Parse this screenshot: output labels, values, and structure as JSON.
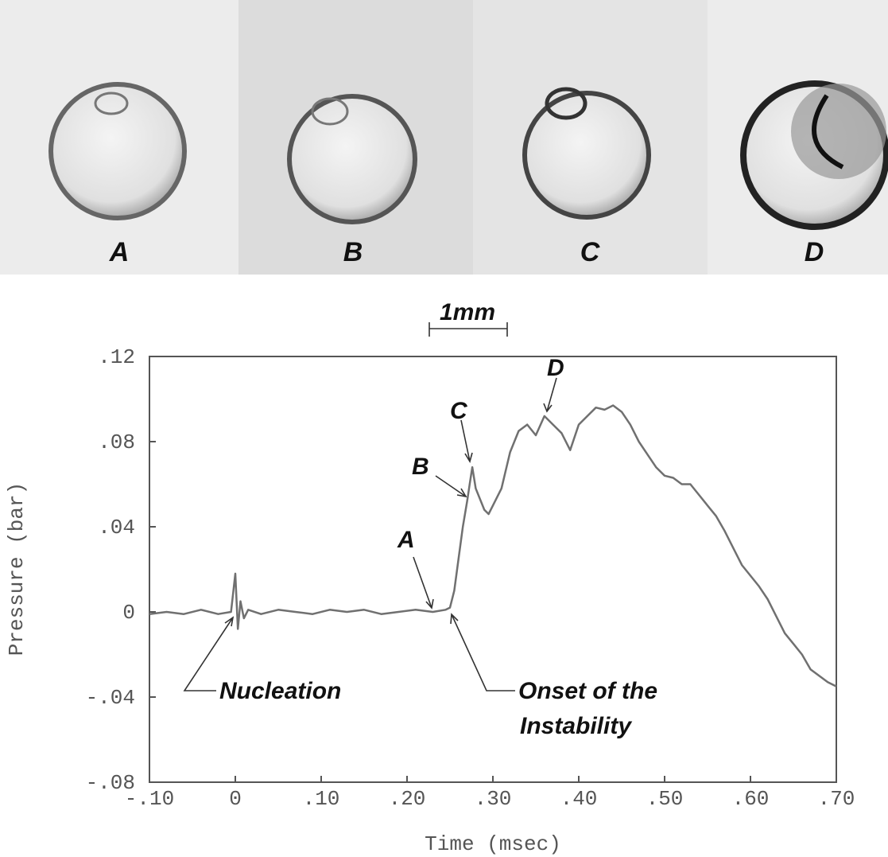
{
  "chart_data": {
    "type": "line",
    "photo_labels": [
      "A",
      "B",
      "C",
      "D"
    ],
    "scale_bar_label": "1mm",
    "xlabel": "Time (msec)",
    "ylabel": "Pressure (bar)",
    "annotations": [
      "A",
      "B",
      "C",
      "D",
      "Nucleation",
      "Onset of the",
      "Instability"
    ],
    "xlim": [
      -0.1,
      0.7
    ],
    "ylim": [
      -0.08,
      0.12
    ],
    "xticks": [
      {
        "value": -0.1,
        "label": "-.10"
      },
      0,
      {
        "value": 0.1,
        "label": ".10"
      },
      {
        "value": 0.2,
        "label": ".20"
      },
      {
        "value": 0.3,
        "label": ".30"
      },
      {
        "value": 0.4,
        "label": ".40"
      },
      {
        "value": 0.5,
        "label": ".50"
      },
      {
        "value": 0.6,
        "label": ".60"
      },
      {
        "value": 0.7,
        "label": ".70"
      }
    ],
    "yticks": [
      {
        "value": -0.08,
        "label": "-.08"
      },
      {
        "value": -0.04,
        "label": "-.04"
      },
      0,
      {
        "value": 0.04,
        "label": ".04"
      },
      {
        "value": 0.08,
        "label": ".08"
      },
      {
        "value": 0.12,
        "label": ".12"
      }
    ],
    "x": [
      -0.1,
      -0.08,
      -0.06,
      -0.04,
      -0.02,
      -0.005,
      0,
      0.003,
      0.006,
      0.01,
      0.015,
      0.03,
      0.05,
      0.07,
      0.09,
      0.11,
      0.13,
      0.15,
      0.17,
      0.19,
      0.21,
      0.23,
      0.245,
      0.25,
      0.255,
      0.26,
      0.265,
      0.27,
      0.273,
      0.276,
      0.28,
      0.29,
      0.295,
      0.3,
      0.31,
      0.32,
      0.33,
      0.34,
      0.35,
      0.36,
      0.37,
      0.38,
      0.39,
      0.4,
      0.41,
      0.42,
      0.43,
      0.44,
      0.45,
      0.46,
      0.47,
      0.48,
      0.49,
      0.5,
      0.51,
      0.52,
      0.53,
      0.54,
      0.55,
      0.56,
      0.57,
      0.58,
      0.59,
      0.6,
      0.61,
      0.62,
      0.63,
      0.64,
      0.65,
      0.66,
      0.67,
      0.68,
      0.69,
      0.7
    ],
    "series": [
      {
        "color": "#707070",
        "values": [
          -0.001,
          0,
          -0.001,
          0.001,
          -0.001,
          0,
          0.018,
          -0.008,
          0.005,
          -0.003,
          0.001,
          -0.001,
          0.001,
          0,
          -0.001,
          0.001,
          0,
          0.001,
          -0.001,
          0,
          0.001,
          0,
          0.001,
          0.002,
          0.01,
          0.025,
          0.04,
          0.052,
          0.06,
          0.068,
          0.058,
          0.048,
          0.046,
          0.05,
          0.058,
          0.075,
          0.085,
          0.088,
          0.083,
          0.092,
          0.088,
          0.084,
          0.076,
          0.088,
          0.092,
          0.096,
          0.095,
          0.097,
          0.094,
          0.088,
          0.08,
          0.074,
          0.068,
          0.064,
          0.063,
          0.06,
          0.06,
          0.055,
          0.05,
          0.045,
          0.038,
          0.03,
          0.022,
          0.017,
          0.012,
          0.006,
          -0.002,
          -0.01,
          -0.015,
          -0.02,
          -0.027,
          -0.03,
          -0.033,
          -0.035
        ]
      }
    ]
  }
}
